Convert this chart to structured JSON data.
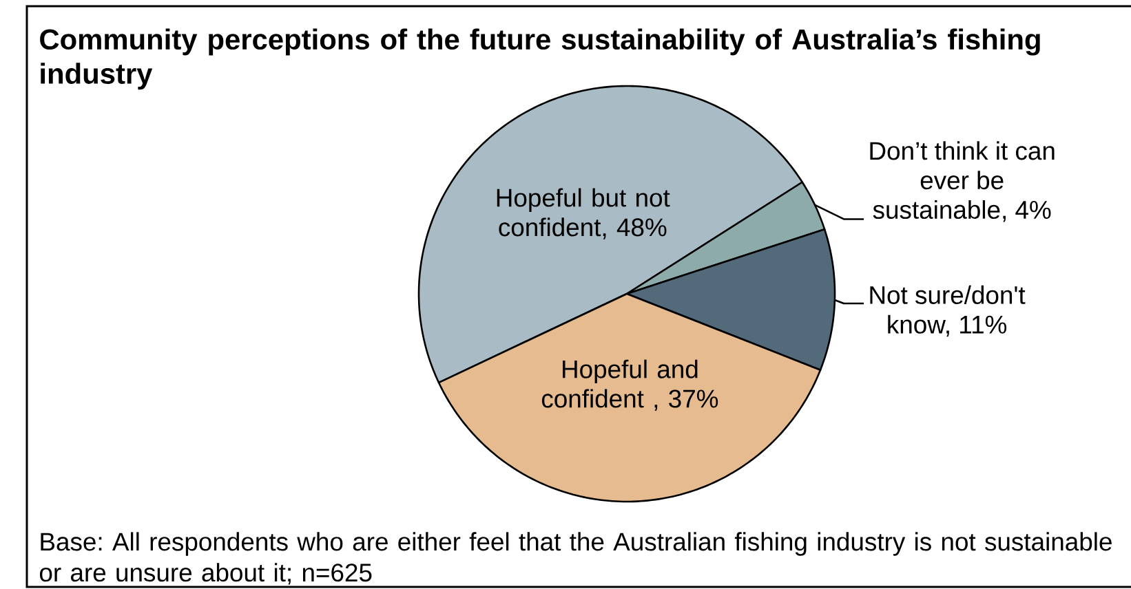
{
  "chart_data": {
    "type": "pie",
    "title": "Community perceptions of the future sustainability of Australia’s fishing industry",
    "categories": [
      "Hopeful but not confident, 48%",
      "Don’t think it can ever be sustainable, 4%",
      "Not sure/don't know, 11%",
      "Hopeful and confident , 37%"
    ],
    "values": [
      48,
      4,
      11,
      37
    ],
    "colors": [
      "#a9bcc6",
      "#8eabab",
      "#536a7a",
      "#e6bb90"
    ],
    "annotations": [
      "Base: All respondents who are either feel that the Australian fishing industry is not sustainable or are unsure about it; n=625"
    ]
  }
}
